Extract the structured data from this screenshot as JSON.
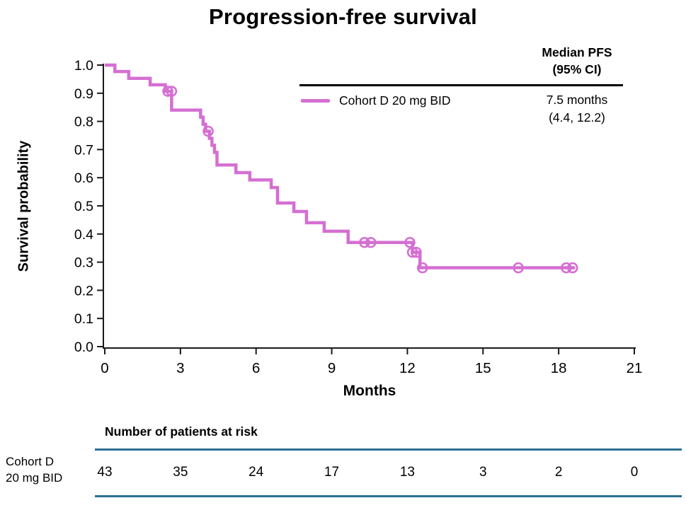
{
  "title": "Progression-free survival",
  "legend": {
    "header_line1": "Median PFS",
    "header_line2": "(95% CI)",
    "series_label": "Cohort D 20 mg BID",
    "median_value_line1": "7.5 months",
    "median_value_line2": "(4.4, 12.2)"
  },
  "colors": {
    "curve": "#d56fd2",
    "risk_rule": "#2e7092",
    "axis": "#1a1a1a"
  },
  "chart_data": {
    "type": "line",
    "subtype": "kaplan-meier-step",
    "title": "Progression-free survival",
    "xlabel": "Months",
    "ylabel": "Survival probability",
    "xlim": [
      0,
      21
    ],
    "ylim": [
      0.0,
      1.0
    ],
    "xticks": [
      "0",
      "3",
      "6",
      "9",
      "12",
      "15",
      "18",
      "21"
    ],
    "yticks": [
      "0.0",
      "0.1",
      "0.2",
      "0.3",
      "0.4",
      "0.5",
      "0.6",
      "0.7",
      "0.8",
      "0.9",
      "1.0"
    ],
    "grid": false,
    "legend_position": "top-right",
    "series": [
      {
        "name": "Cohort D 20 mg BID",
        "color": "#d56fd2",
        "median_pfs": "7.5 months",
        "median_95ci": "(4.4, 12.2)",
        "steps": [
          [
            0,
            1.0
          ],
          [
            0.4,
            0.977
          ],
          [
            0.95,
            0.953
          ],
          [
            1.8,
            0.93
          ],
          [
            2.4,
            0.907
          ],
          [
            2.65,
            0.84
          ],
          [
            3.8,
            0.815
          ],
          [
            3.9,
            0.79
          ],
          [
            4.0,
            0.765
          ],
          [
            4.15,
            0.74
          ],
          [
            4.25,
            0.715
          ],
          [
            4.35,
            0.69
          ],
          [
            4.45,
            0.645
          ],
          [
            5.2,
            0.618
          ],
          [
            5.75,
            0.592
          ],
          [
            6.6,
            0.565
          ],
          [
            6.85,
            0.51
          ],
          [
            7.5,
            0.48
          ],
          [
            8.0,
            0.44
          ],
          [
            8.7,
            0.41
          ],
          [
            9.65,
            0.37
          ],
          [
            12.2,
            0.335
          ],
          [
            12.5,
            0.28
          ]
        ],
        "end_time": 18.65,
        "censor_marks": [
          [
            2.5,
            0.907
          ],
          [
            2.65,
            0.907
          ],
          [
            4.1,
            0.765
          ],
          [
            10.3,
            0.37
          ],
          [
            10.55,
            0.37
          ],
          [
            12.1,
            0.37
          ],
          [
            12.2,
            0.335
          ],
          [
            12.35,
            0.335
          ],
          [
            12.6,
            0.28
          ],
          [
            16.4,
            0.28
          ],
          [
            18.3,
            0.28
          ],
          [
            18.55,
            0.28
          ]
        ]
      }
    ]
  },
  "risk_table": {
    "header": "Number of patients at risk",
    "row_label_line1": "Cohort D",
    "row_label_line2": "20 mg BID",
    "times": [
      0,
      3,
      6,
      9,
      12,
      15,
      18,
      21
    ],
    "values": [
      "43",
      "35",
      "24",
      "17",
      "13",
      "3",
      "2",
      "0"
    ]
  }
}
